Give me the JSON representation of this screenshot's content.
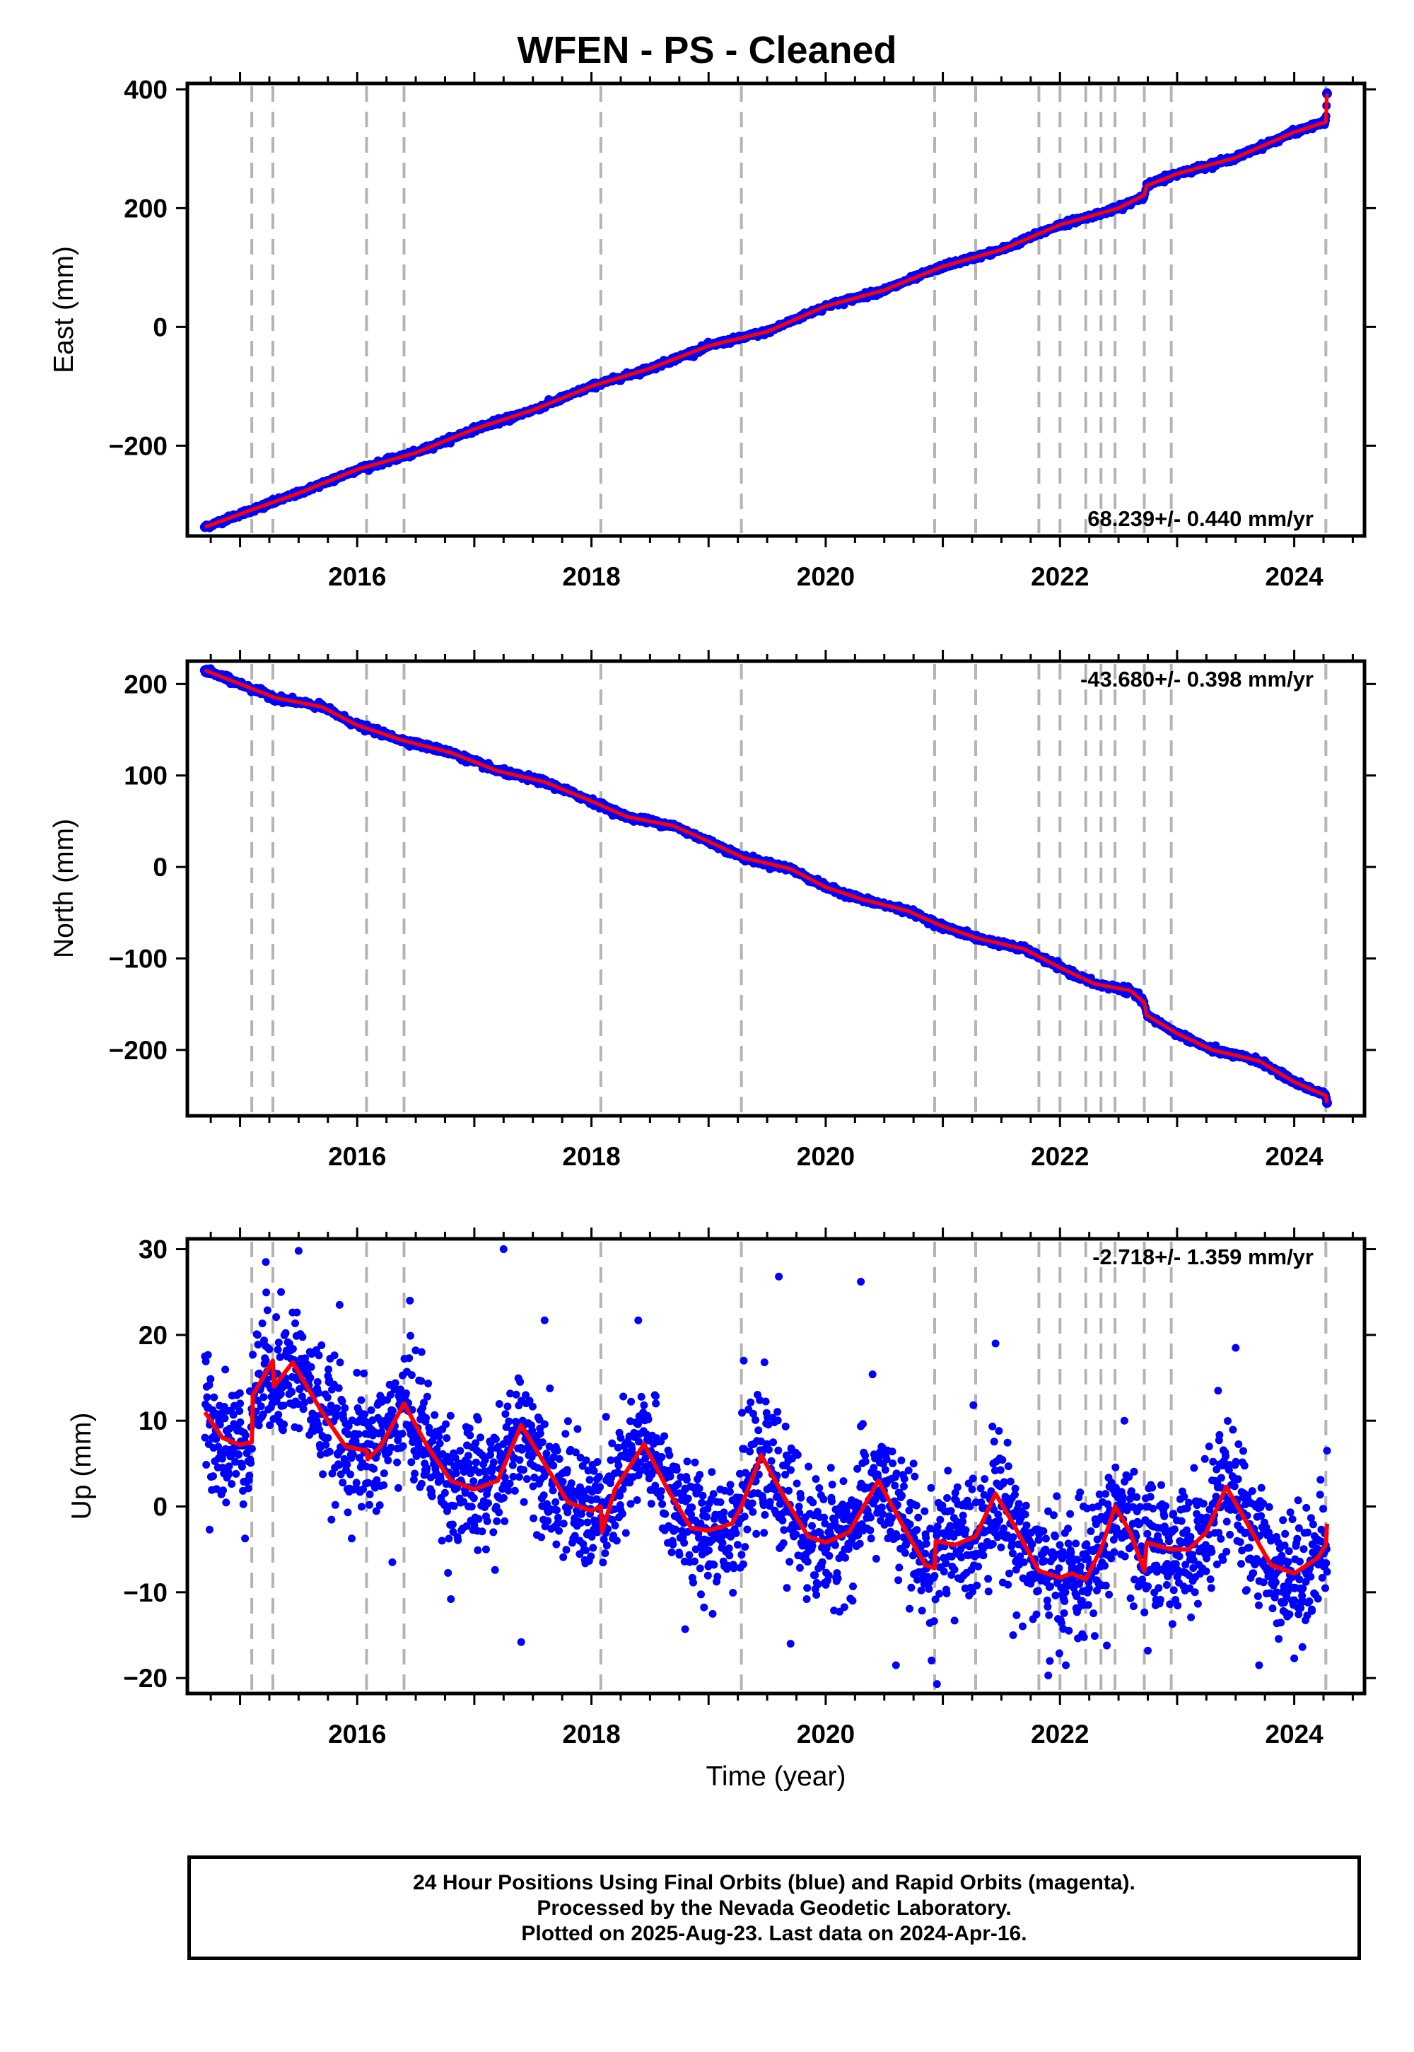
{
  "title": "WFEN  - PS - Cleaned",
  "colors": {
    "points": "#0000ff",
    "fit": "#ff0000",
    "break_lines": "#b4b4b4"
  },
  "chart_data": [
    {
      "type": "scatter",
      "ylabel": "East (mm)",
      "xlabel": "",
      "xlim": [
        2014.55,
        2024.6
      ],
      "ylim": [
        -352,
        410
      ],
      "xticks": [
        2016,
        2018,
        2020,
        2022,
        2024
      ],
      "yticks": [
        -200,
        0,
        200,
        400
      ],
      "ytick_labels": [
        "−200",
        "0",
        "200",
        "400"
      ],
      "rate_label": "68.239+/- 0.440 mm/yr",
      "rate_position": "bottom-right",
      "breaks": [
        2015.1,
        2015.28,
        2016.08,
        2016.4,
        2018.08,
        2019.28,
        2020.93,
        2021.28,
        2021.82,
        2022.0,
        2022.22,
        2022.35,
        2022.47,
        2022.72,
        2022.95,
        2024.27
      ],
      "fit": [
        [
          2014.7,
          -337
        ],
        [
          2015.1,
          -308
        ],
        [
          2015.5,
          -280
        ],
        [
          2016.0,
          -240
        ],
        [
          2016.5,
          -212
        ],
        [
          2017.0,
          -172
        ],
        [
          2017.5,
          -140
        ],
        [
          2018.0,
          -100
        ],
        [
          2018.5,
          -70
        ],
        [
          2019.0,
          -32
        ],
        [
          2019.5,
          -8
        ],
        [
          2020.0,
          35
        ],
        [
          2020.5,
          62
        ],
        [
          2021.0,
          102
        ],
        [
          2021.5,
          130
        ],
        [
          2022.0,
          172
        ],
        [
          2022.5,
          200
        ],
        [
          2022.72,
          222
        ],
        [
          2022.74,
          238
        ],
        [
          2023.0,
          258
        ],
        [
          2023.5,
          285
        ],
        [
          2024.0,
          328
        ],
        [
          2024.27,
          345
        ],
        [
          2024.28,
          393
        ]
      ],
      "points": [
        [
          2014.7,
          -337
        ],
        [
          2014.9,
          -320
        ],
        [
          2015.2,
          -305
        ],
        [
          2015.5,
          -282
        ],
        [
          2015.8,
          -260
        ],
        [
          2016.1,
          -235
        ],
        [
          2016.4,
          -215
        ],
        [
          2016.7,
          -195
        ],
        [
          2017.0,
          -172
        ],
        [
          2017.3,
          -158
        ],
        [
          2017.6,
          -135
        ],
        [
          2017.9,
          -108
        ],
        [
          2018.2,
          -88
        ],
        [
          2018.5,
          -70
        ],
        [
          2018.8,
          -48
        ],
        [
          2019.1,
          -25
        ],
        [
          2019.4,
          -10
        ],
        [
          2019.7,
          10
        ],
        [
          2020.0,
          35
        ],
        [
          2020.3,
          52
        ],
        [
          2020.6,
          68
        ],
        [
          2020.9,
          95
        ],
        [
          2021.2,
          112
        ],
        [
          2021.5,
          130
        ],
        [
          2021.8,
          155
        ],
        [
          2022.1,
          178
        ],
        [
          2022.4,
          195
        ],
        [
          2022.7,
          220
        ],
        [
          2022.9,
          255
        ],
        [
          2023.2,
          268
        ],
        [
          2023.5,
          285
        ],
        [
          2023.8,
          310
        ],
        [
          2024.1,
          335
        ],
        [
          2024.28,
          393
        ]
      ]
    },
    {
      "type": "scatter",
      "ylabel": "North (mm)",
      "xlabel": "",
      "xlim": [
        2014.55,
        2024.6
      ],
      "ylim": [
        -272,
        225
      ],
      "xticks": [
        2016,
        2018,
        2020,
        2022,
        2024
      ],
      "yticks": [
        -200,
        -100,
        0,
        100,
        200
      ],
      "ytick_labels": [
        "−200",
        "−100",
        "0",
        "100",
        "200"
      ],
      "rate_label": "-43.680+/- 0.398 mm/yr",
      "rate_position": "top-right",
      "breaks": [
        2015.1,
        2015.28,
        2016.08,
        2016.4,
        2018.08,
        2019.28,
        2020.93,
        2021.28,
        2021.82,
        2022.0,
        2022.22,
        2022.35,
        2022.47,
        2022.72,
        2022.95,
        2024.27
      ],
      "fit": [
        [
          2014.7,
          215
        ],
        [
          2015.0,
          200
        ],
        [
          2015.3,
          185
        ],
        [
          2015.7,
          175
        ],
        [
          2016.0,
          155
        ],
        [
          2016.4,
          138
        ],
        [
          2016.8,
          125
        ],
        [
          2017.2,
          105
        ],
        [
          2017.6,
          93
        ],
        [
          2018.0,
          72
        ],
        [
          2018.3,
          55
        ],
        [
          2018.7,
          45
        ],
        [
          2019.0,
          28
        ],
        [
          2019.3,
          10
        ],
        [
          2019.7,
          -2
        ],
        [
          2020.0,
          -22
        ],
        [
          2020.3,
          -35
        ],
        [
          2020.7,
          -48
        ],
        [
          2021.0,
          -65
        ],
        [
          2021.3,
          -78
        ],
        [
          2021.7,
          -90
        ],
        [
          2022.0,
          -110
        ],
        [
          2022.3,
          -128
        ],
        [
          2022.6,
          -135
        ],
        [
          2022.72,
          -148
        ],
        [
          2022.74,
          -162
        ],
        [
          2023.0,
          -182
        ],
        [
          2023.3,
          -200
        ],
        [
          2023.7,
          -212
        ],
        [
          2024.0,
          -235
        ],
        [
          2024.27,
          -250
        ],
        [
          2024.28,
          -258
        ]
      ],
      "points": [
        [
          2014.7,
          215
        ],
        [
          2014.9,
          208
        ],
        [
          2015.2,
          192
        ],
        [
          2015.5,
          180
        ],
        [
          2015.8,
          168
        ],
        [
          2016.1,
          150
        ],
        [
          2016.4,
          138
        ],
        [
          2016.7,
          130
        ],
        [
          2017.0,
          115
        ],
        [
          2017.3,
          100
        ],
        [
          2017.6,
          93
        ],
        [
          2017.9,
          78
        ],
        [
          2018.2,
          60
        ],
        [
          2018.5,
          50
        ],
        [
          2018.8,
          38
        ],
        [
          2019.1,
          22
        ],
        [
          2019.4,
          6
        ],
        [
          2019.7,
          -2
        ],
        [
          2020.0,
          -22
        ],
        [
          2020.3,
          -35
        ],
        [
          2020.6,
          -44
        ],
        [
          2020.9,
          -60
        ],
        [
          2021.2,
          -75
        ],
        [
          2021.5,
          -85
        ],
        [
          2021.8,
          -96
        ],
        [
          2022.1,
          -115
        ],
        [
          2022.4,
          -130
        ],
        [
          2022.7,
          -145
        ],
        [
          2022.9,
          -175
        ],
        [
          2023.2,
          -195
        ],
        [
          2023.5,
          -205
        ],
        [
          2023.8,
          -220
        ],
        [
          2024.1,
          -240
        ],
        [
          2024.28,
          -258
        ]
      ]
    },
    {
      "type": "scatter",
      "ylabel": "Up (mm)",
      "xlabel": "Time (year)",
      "xlim": [
        2014.55,
        2024.6
      ],
      "ylim": [
        -21.8,
        31.2
      ],
      "xticks": [
        2016,
        2018,
        2020,
        2022,
        2024
      ],
      "yticks": [
        -20,
        -10,
        0,
        10,
        20,
        30
      ],
      "ytick_labels": [
        "−20",
        "−10",
        "0",
        "10",
        "20",
        "30"
      ],
      "rate_label": "-2.718+/- 1.359 mm/yr",
      "rate_position": "top-right",
      "breaks": [
        2015.1,
        2015.28,
        2016.08,
        2016.4,
        2018.08,
        2019.28,
        2020.93,
        2021.28,
        2021.82,
        2022.0,
        2022.22,
        2022.35,
        2022.47,
        2022.72,
        2022.95,
        2024.27
      ],
      "fit": [
        [
          2014.7,
          11
        ],
        [
          2014.85,
          8
        ],
        [
          2015.0,
          7.2
        ],
        [
          2015.1,
          7.5
        ],
        [
          2015.11,
          13
        ],
        [
          2015.28,
          17
        ],
        [
          2015.29,
          14
        ],
        [
          2015.45,
          16.8
        ],
        [
          2015.7,
          11
        ],
        [
          2015.9,
          7
        ],
        [
          2016.08,
          6.5
        ],
        [
          2016.09,
          5.5
        ],
        [
          2016.2,
          7
        ],
        [
          2016.4,
          12
        ],
        [
          2016.6,
          7
        ],
        [
          2016.8,
          3
        ],
        [
          2017.0,
          2
        ],
        [
          2017.2,
          3
        ],
        [
          2017.4,
          9.5
        ],
        [
          2017.6,
          5
        ],
        [
          2017.8,
          0.5
        ],
        [
          2018.0,
          -0.5
        ],
        [
          2018.08,
          0
        ],
        [
          2018.09,
          -3
        ],
        [
          2018.2,
          2
        ],
        [
          2018.45,
          7.3
        ],
        [
          2018.65,
          2
        ],
        [
          2018.85,
          -2.5
        ],
        [
          2019.0,
          -2.8
        ],
        [
          2019.2,
          -2
        ],
        [
          2019.28,
          0
        ],
        [
          2019.45,
          6
        ],
        [
          2019.65,
          1
        ],
        [
          2019.85,
          -3.5
        ],
        [
          2020.0,
          -4.2
        ],
        [
          2020.2,
          -3
        ],
        [
          2020.45,
          3
        ],
        [
          2020.65,
          -2
        ],
        [
          2020.85,
          -6.8
        ],
        [
          2020.93,
          -7.2
        ],
        [
          2020.94,
          -4
        ],
        [
          2021.1,
          -4.5
        ],
        [
          2021.28,
          -3.5
        ],
        [
          2021.45,
          1.5
        ],
        [
          2021.6,
          -2
        ],
        [
          2021.82,
          -7.5
        ],
        [
          2022.0,
          -8.3
        ],
        [
          2022.1,
          -7.8
        ],
        [
          2022.22,
          -8.5
        ],
        [
          2022.35,
          -5
        ],
        [
          2022.47,
          0
        ],
        [
          2022.6,
          -3
        ],
        [
          2022.72,
          -7.5
        ],
        [
          2022.74,
          -4.2
        ],
        [
          2022.95,
          -5
        ],
        [
          2023.1,
          -5
        ],
        [
          2023.25,
          -3
        ],
        [
          2023.42,
          2.3
        ],
        [
          2023.6,
          -2
        ],
        [
          2023.8,
          -6.8
        ],
        [
          2024.0,
          -7.8
        ],
        [
          2024.2,
          -6
        ],
        [
          2024.27,
          -4.5
        ],
        [
          2024.28,
          -2
        ]
      ],
      "points": [
        [
          2014.7,
          17.5
        ],
        [
          2014.74,
          -2.7
        ],
        [
          2014.82,
          10
        ],
        [
          2014.9,
          4
        ],
        [
          2015.0,
          12
        ],
        [
          2015.15,
          20
        ],
        [
          2015.22,
          28.5
        ],
        [
          2015.35,
          25
        ],
        [
          2015.5,
          29.8
        ],
        [
          2015.6,
          15
        ],
        [
          2015.75,
          8
        ],
        [
          2015.85,
          23.5
        ],
        [
          2016.05,
          2
        ],
        [
          2016.2,
          10
        ],
        [
          2016.3,
          -6.5
        ],
        [
          2016.45,
          24
        ],
        [
          2016.55,
          18
        ],
        [
          2016.7,
          5
        ],
        [
          2016.8,
          -10.8
        ],
        [
          2016.95,
          0
        ],
        [
          2017.1,
          -5
        ],
        [
          2017.25,
          30
        ],
        [
          2017.4,
          -15.8
        ],
        [
          2017.6,
          21.7
        ],
        [
          2017.75,
          2
        ],
        [
          2017.9,
          -4
        ],
        [
          2018.05,
          -3
        ],
        [
          2018.25,
          8
        ],
        [
          2018.4,
          21.7
        ],
        [
          2018.55,
          12
        ],
        [
          2018.8,
          -14.3
        ],
        [
          2018.95,
          -5
        ],
        [
          2019.1,
          2
        ],
        [
          2019.3,
          17
        ],
        [
          2019.5,
          2
        ],
        [
          2019.6,
          26.8
        ],
        [
          2019.7,
          -16
        ],
        [
          2019.9,
          -8
        ],
        [
          2020.05,
          -4
        ],
        [
          2020.3,
          26.2
        ],
        [
          2020.4,
          15.4
        ],
        [
          2020.6,
          -18.5
        ],
        [
          2020.75,
          5
        ],
        [
          2020.95,
          -20.7
        ],
        [
          2021.1,
          -13.3
        ],
        [
          2021.25,
          2
        ],
        [
          2021.45,
          19
        ],
        [
          2021.6,
          -15
        ],
        [
          2021.75,
          -9
        ],
        [
          2021.9,
          -19.7
        ],
        [
          2022.05,
          -18.5
        ],
        [
          2022.2,
          0
        ],
        [
          2022.4,
          -16.2
        ],
        [
          2022.55,
          10
        ],
        [
          2022.75,
          -16.8
        ],
        [
          2022.9,
          -3
        ],
        [
          2023.1,
          -8
        ],
        [
          2023.35,
          13.5
        ],
        [
          2023.5,
          18.5
        ],
        [
          2023.7,
          -18.5
        ],
        [
          2023.85,
          -10
        ],
        [
          2024.0,
          -17.7
        ],
        [
          2024.15,
          -12
        ],
        [
          2024.28,
          6.5
        ]
      ]
    }
  ],
  "footer": {
    "line1": "24 Hour Positions Using Final Orbits (blue) and Rapid Orbits (magenta).",
    "line2": "Processed by the Nevada Geodetic Laboratory.",
    "line3": "Plotted on 2025-Aug-23. Last data on 2024-Apr-16."
  }
}
